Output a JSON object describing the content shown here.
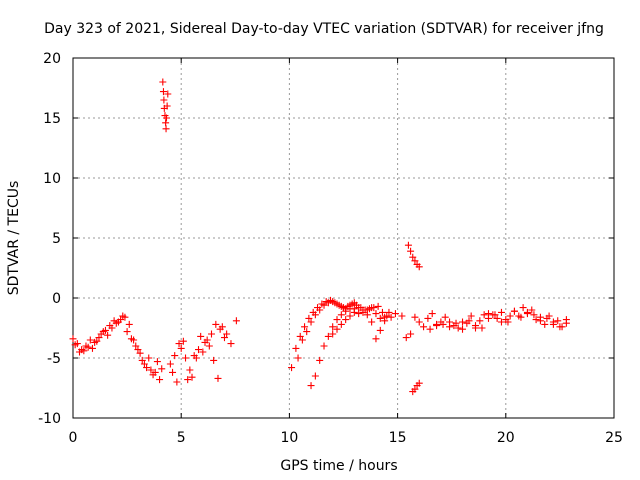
{
  "chart_data": {
    "type": "scatter",
    "title": "Day 323 of 2021, Sidereal Day-to-day VTEC variation (SDTVAR) for receiver jfng",
    "xlabel": "GPS time / hours",
    "ylabel": "SDTVAR / TECUs",
    "xlim": [
      0,
      25
    ],
    "ylim": [
      -10,
      20
    ],
    "x_ticks": [
      0,
      5,
      10,
      15,
      20,
      25
    ],
    "y_ticks": [
      -10,
      -5,
      0,
      5,
      10,
      15,
      20
    ],
    "x_tick_labels": [
      "0",
      "5",
      "10",
      "15",
      "20",
      "25"
    ],
    "y_tick_labels": [
      "-10",
      "-5",
      "0",
      "5",
      "10",
      "15",
      "20"
    ],
    "grid": true,
    "legend": "none",
    "marker": "plus",
    "color": "#ff0000",
    "series": [
      {
        "name": "SDTVAR",
        "x": [
          0.0,
          0.2,
          0.4,
          0.6,
          0.8,
          1.0,
          1.2,
          1.4,
          1.6,
          1.8,
          2.0,
          2.2,
          2.4,
          2.6,
          2.8,
          3.0,
          3.2,
          3.4,
          3.6,
          3.8,
          4.0,
          4.1,
          0.1,
          0.3,
          0.5,
          0.7,
          0.9,
          1.1,
          1.3,
          1.5,
          1.7,
          1.9,
          2.1,
          2.3,
          2.5,
          2.7,
          2.9,
          3.1,
          3.3,
          3.5,
          3.7,
          3.9,
          4.15,
          4.18,
          4.2,
          4.22,
          4.25,
          4.28,
          4.3,
          4.32,
          4.35,
          4.38,
          4.5,
          4.7,
          4.9,
          5.1,
          5.3,
          5.5,
          5.7,
          5.9,
          6.1,
          6.3,
          6.5,
          6.7,
          6.9,
          7.1,
          7.3,
          4.6,
          4.8,
          5.0,
          5.2,
          5.4,
          5.6,
          5.8,
          6.0,
          6.2,
          6.4,
          6.6,
          6.8,
          7.0,
          7.55,
          10.1,
          10.3,
          10.5,
          10.7,
          10.9,
          11.1,
          11.3,
          11.5,
          11.7,
          11.9,
          12.1,
          12.3,
          12.5,
          12.7,
          12.9,
          13.1,
          13.3,
          13.5,
          13.7,
          13.9,
          14.1,
          14.3,
          14.5,
          14.7,
          14.9,
          10.4,
          10.6,
          10.8,
          11.0,
          11.2,
          11.4,
          11.6,
          11.8,
          12.0,
          12.2,
          12.4,
          12.6,
          12.8,
          13.0,
          11.0,
          11.2,
          11.4,
          11.6,
          11.8,
          12.0,
          12.2,
          12.4,
          12.6,
          12.8,
          13.0,
          13.2,
          13.4,
          13.6,
          13.8,
          14.0,
          14.2,
          14.4,
          12.0,
          12.2,
          12.4,
          12.6,
          12.8,
          13.0,
          13.2,
          13.4,
          13.6,
          13.8,
          14.0,
          14.2,
          14.4,
          14.6,
          15.5,
          15.6,
          15.7,
          15.8,
          15.9,
          16.0,
          15.7,
          15.8,
          15.9,
          16.0,
          15.2,
          15.4,
          15.6,
          15.8,
          16.0,
          16.2,
          16.4,
          16.6,
          16.8,
          17.0,
          17.2,
          17.4,
          17.6,
          17.8,
          18.0,
          18.2,
          18.4,
          18.6,
          18.8,
          19.0,
          19.2,
          19.4,
          19.6,
          19.8,
          20.0,
          20.2,
          20.4,
          20.6,
          20.8,
          21.0,
          21.2,
          21.4,
          21.6,
          21.8,
          22.0,
          22.2,
          22.4,
          22.6,
          22.8,
          16.5,
          16.8,
          17.1,
          17.4,
          17.7,
          18.0,
          18.3,
          18.6,
          18.9,
          19.2,
          19.5,
          19.8,
          20.1,
          20.4,
          20.7,
          21.0,
          21.3,
          21.6,
          21.9,
          22.2,
          22.5,
          22.8
        ],
        "y": [
          -3.4,
          -3.8,
          -4.3,
          -4.0,
          -3.5,
          -3.7,
          -3.3,
          -2.8,
          -3.1,
          -2.5,
          -2.1,
          -1.8,
          -1.6,
          -2.2,
          -3.5,
          -4.3,
          -5.2,
          -5.8,
          -6.0,
          -6.2,
          -6.8,
          -5.9,
          -3.9,
          -4.5,
          -4.4,
          -4.1,
          -4.2,
          -3.6,
          -3.0,
          -2.7,
          -2.3,
          -1.9,
          -2.0,
          -1.5,
          -2.8,
          -3.4,
          -4.0,
          -4.6,
          -5.5,
          -5.0,
          -6.4,
          -5.3,
          18.0,
          17.2,
          16.5,
          15.8,
          15.2,
          14.6,
          14.1,
          15.0,
          16.0,
          17.0,
          -5.5,
          -4.8,
          -3.8,
          -3.6,
          -6.8,
          -6.6,
          -5.0,
          -3.2,
          -3.7,
          -4.0,
          -5.2,
          -6.7,
          -2.4,
          -3.0,
          -3.8,
          -6.2,
          -7.0,
          -4.2,
          -5.0,
          -6.0,
          -4.8,
          -4.3,
          -4.5,
          -3.5,
          -3.0,
          -2.2,
          -2.6,
          -3.3,
          -1.9,
          -5.8,
          -4.2,
          -3.2,
          -2.4,
          -1.7,
          -1.2,
          -0.8,
          -0.5,
          -0.3,
          -0.2,
          -0.4,
          -0.6,
          -0.8,
          -0.7,
          -0.5,
          -0.6,
          -0.8,
          -1.0,
          -0.9,
          -0.8,
          -0.7,
          -1.2,
          -1.5,
          -1.6,
          -1.3,
          -5.0,
          -3.5,
          -2.8,
          -2.0,
          -1.4,
          -1.0,
          -0.6,
          -0.4,
          -0.3,
          -0.5,
          -0.7,
          -0.9,
          -0.6,
          -0.4,
          -7.3,
          -6.5,
          -5.2,
          -4.0,
          -3.2,
          -2.4,
          -1.8,
          -1.4,
          -1.1,
          -0.9,
          -0.9,
          -0.8,
          -1.2,
          -1.0,
          -0.8,
          -1.3,
          -1.7,
          -1.9,
          -3.0,
          -2.6,
          -2.2,
          -1.8,
          -1.5,
          -1.2,
          -1.3,
          -1.0,
          -1.4,
          -2.0,
          -3.4,
          -2.7,
          -1.6,
          -1.2,
          4.4,
          3.9,
          3.4,
          3.1,
          2.8,
          2.6,
          -7.8,
          -7.6,
          -7.3,
          -7.1,
          -1.5,
          -3.3,
          -3.0,
          -1.6,
          -2.0,
          -2.4,
          -1.7,
          -1.3,
          -2.2,
          -2.0,
          -1.6,
          -2.0,
          -2.3,
          -2.5,
          -2.6,
          -2.1,
          -1.5,
          -2.5,
          -1.9,
          -1.4,
          -1.3,
          -1.4,
          -1.7,
          -1.2,
          -1.8,
          -1.5,
          -1.1,
          -1.5,
          -0.8,
          -1.3,
          -1.0,
          -1.8,
          -1.6,
          -2.2,
          -1.5,
          -2.2,
          -1.9,
          -2.4,
          -1.8,
          -2.6,
          -2.3,
          -2.2,
          -2.4,
          -2.1,
          -2.0,
          -1.9,
          -2.3,
          -2.5,
          -1.7,
          -1.4,
          -2.0,
          -2.0,
          -1.1,
          -1.6,
          -1.2,
          -1.4,
          -1.9,
          -1.7,
          -2.0,
          -2.4,
          -2.1
        ]
      }
    ]
  }
}
